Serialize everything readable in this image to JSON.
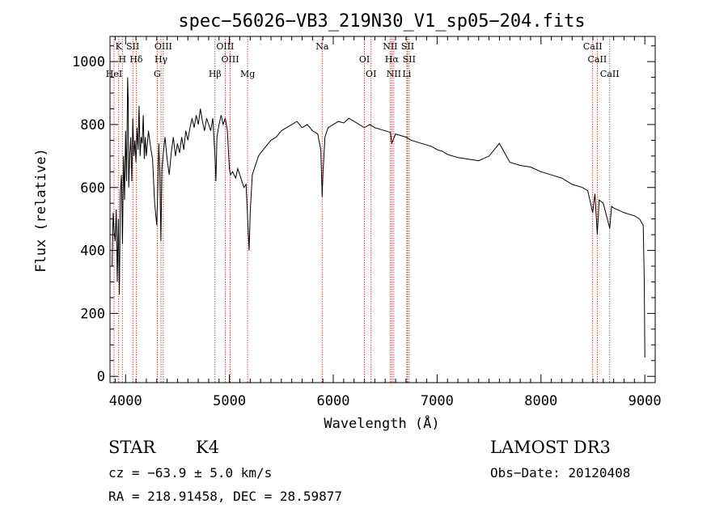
{
  "chart_data": {
    "type": "line",
    "title": "spec−56026−VB3_219N30_V1_sp05−204.fits",
    "xlabel": "Wavelength (Å)",
    "ylabel": "Flux (relative)",
    "xlim": [
      3850,
      9100
    ],
    "ylim": [
      -20,
      1080
    ],
    "xticks": [
      4000,
      5000,
      6000,
      7000,
      8000,
      9000
    ],
    "yticks": [
      0,
      200,
      400,
      600,
      800,
      1000
    ],
    "series": [
      {
        "name": "flux",
        "points": [
          [
            3870,
            350
          ],
          [
            3880,
            520
          ],
          [
            3890,
            460
          ],
          [
            3900,
            430
          ],
          [
            3910,
            530
          ],
          [
            3920,
            300
          ],
          [
            3930,
            500
          ],
          [
            3940,
            260
          ],
          [
            3950,
            580
          ],
          [
            3960,
            640
          ],
          [
            3970,
            420
          ],
          [
            3980,
            700
          ],
          [
            3990,
            560
          ],
          [
            4000,
            780
          ],
          [
            4010,
            620
          ],
          [
            4020,
            950
          ],
          [
            4025,
            880
          ],
          [
            4030,
            600
          ],
          [
            4040,
            700
          ],
          [
            4050,
            760
          ],
          [
            4060,
            620
          ],
          [
            4070,
            820
          ],
          [
            4080,
            700
          ],
          [
            4090,
            750
          ],
          [
            4100,
            680
          ],
          [
            4110,
            790
          ],
          [
            4120,
            720
          ],
          [
            4130,
            860
          ],
          [
            4140,
            700
          ],
          [
            4150,
            760
          ],
          [
            4160,
            740
          ],
          [
            4170,
            830
          ],
          [
            4180,
            690
          ],
          [
            4190,
            760
          ],
          [
            4200,
            700
          ],
          [
            4220,
            780
          ],
          [
            4240,
            730
          ],
          [
            4260,
            690
          ],
          [
            4280,
            550
          ],
          [
            4300,
            480
          ],
          [
            4310,
            600
          ],
          [
            4320,
            740
          ],
          [
            4330,
            640
          ],
          [
            4340,
            430
          ],
          [
            4350,
            660
          ],
          [
            4360,
            700
          ],
          [
            4380,
            760
          ],
          [
            4400,
            690
          ],
          [
            4420,
            640
          ],
          [
            4440,
            710
          ],
          [
            4460,
            760
          ],
          [
            4480,
            700
          ],
          [
            4500,
            740
          ],
          [
            4520,
            710
          ],
          [
            4540,
            760
          ],
          [
            4560,
            720
          ],
          [
            4580,
            780
          ],
          [
            4600,
            750
          ],
          [
            4620,
            790
          ],
          [
            4640,
            820
          ],
          [
            4660,
            790
          ],
          [
            4680,
            830
          ],
          [
            4700,
            800
          ],
          [
            4720,
            850
          ],
          [
            4740,
            810
          ],
          [
            4760,
            780
          ],
          [
            4780,
            820
          ],
          [
            4800,
            800
          ],
          [
            4820,
            780
          ],
          [
            4840,
            820
          ],
          [
            4860,
            700
          ],
          [
            4870,
            620
          ],
          [
            4880,
            760
          ],
          [
            4900,
            800
          ],
          [
            4920,
            830
          ],
          [
            4940,
            800
          ],
          [
            4960,
            820
          ],
          [
            4980,
            780
          ],
          [
            5000,
            660
          ],
          [
            5010,
            640
          ],
          [
            5030,
            650
          ],
          [
            5060,
            630
          ],
          [
            5080,
            660
          ],
          [
            5100,
            640
          ],
          [
            5120,
            620
          ],
          [
            5140,
            600
          ],
          [
            5160,
            610
          ],
          [
            5180,
            470
          ],
          [
            5190,
            400
          ],
          [
            5200,
            520
          ],
          [
            5220,
            640
          ],
          [
            5240,
            660
          ],
          [
            5260,
            680
          ],
          [
            5280,
            700
          ],
          [
            5300,
            710
          ],
          [
            5350,
            730
          ],
          [
            5400,
            750
          ],
          [
            5450,
            760
          ],
          [
            5500,
            780
          ],
          [
            5550,
            790
          ],
          [
            5600,
            800
          ],
          [
            5650,
            810
          ],
          [
            5700,
            790
          ],
          [
            5750,
            800
          ],
          [
            5800,
            780
          ],
          [
            5850,
            770
          ],
          [
            5880,
            720
          ],
          [
            5893,
            570
          ],
          [
            5900,
            640
          ],
          [
            5920,
            760
          ],
          [
            5950,
            790
          ],
          [
            6000,
            800
          ],
          [
            6050,
            810
          ],
          [
            6100,
            805
          ],
          [
            6150,
            820
          ],
          [
            6200,
            810
          ],
          [
            6250,
            800
          ],
          [
            6300,
            790
          ],
          [
            6350,
            800
          ],
          [
            6400,
            790
          ],
          [
            6450,
            785
          ],
          [
            6500,
            780
          ],
          [
            6550,
            775
          ],
          [
            6563,
            740
          ],
          [
            6600,
            770
          ],
          [
            6650,
            765
          ],
          [
            6700,
            760
          ],
          [
            6750,
            750
          ],
          [
            6800,
            745
          ],
          [
            6850,
            740
          ],
          [
            6900,
            735
          ],
          [
            6950,
            730
          ],
          [
            7000,
            720
          ],
          [
            7050,
            715
          ],
          [
            7100,
            705
          ],
          [
            7200,
            695
          ],
          [
            7300,
            690
          ],
          [
            7400,
            685
          ],
          [
            7500,
            700
          ],
          [
            7550,
            720
          ],
          [
            7600,
            740
          ],
          [
            7650,
            710
          ],
          [
            7700,
            680
          ],
          [
            7800,
            670
          ],
          [
            7900,
            665
          ],
          [
            8000,
            650
          ],
          [
            8100,
            640
          ],
          [
            8200,
            630
          ],
          [
            8300,
            610
          ],
          [
            8400,
            600
          ],
          [
            8450,
            590
          ],
          [
            8498,
            520
          ],
          [
            8520,
            580
          ],
          [
            8542,
            450
          ],
          [
            8560,
            560
          ],
          [
            8600,
            550
          ],
          [
            8662,
            470
          ],
          [
            8680,
            540
          ],
          [
            8700,
            535
          ],
          [
            8800,
            520
          ],
          [
            8900,
            510
          ],
          [
            8950,
            500
          ],
          [
            8985,
            480
          ],
          [
            8995,
            300
          ],
          [
            9000,
            60
          ]
        ]
      }
    ],
    "lines": [
      {
        "label": "K",
        "wl": 3934
      },
      {
        "label": "H",
        "wl": 3969
      },
      {
        "label": "HeI",
        "wl": 3889
      },
      {
        "label": "SII",
        "wl": 4070
      },
      {
        "label": "Hδ",
        "wl": 4102
      },
      {
        "label": "G",
        "wl": 4305
      },
      {
        "label": "OIII",
        "wl": 4363
      },
      {
        "label": "Hγ",
        "wl": 4341
      },
      {
        "label": "Hβ",
        "wl": 4861
      },
      {
        "label": "OIII",
        "wl": 4959
      },
      {
        "label": "OIII",
        "wl": 5007
      },
      {
        "label": "Mg",
        "wl": 5175
      },
      {
        "label": "Na",
        "wl": 5893
      },
      {
        "label": "OI",
        "wl": 6300
      },
      {
        "label": "OI",
        "wl": 6364
      },
      {
        "label": "NII",
        "wl": 6548
      },
      {
        "label": "Hα",
        "wl": 6563
      },
      {
        "label": "NII",
        "wl": 6583
      },
      {
        "label": "SII",
        "wl": 6716
      },
      {
        "label": "SII",
        "wl": 6731
      },
      {
        "label": "Li",
        "wl": 6708
      },
      {
        "label": "CaII",
        "wl": 8498
      },
      {
        "label": "CaII",
        "wl": 8542
      },
      {
        "label": "CaII",
        "wl": 8662
      }
    ],
    "line_color": "#b22222",
    "spectrum_color": "#000000"
  },
  "footer": {
    "class_label": "STAR",
    "subclass_label": "K4",
    "cz_text": "cz = −63.9 ± 5.0 km/s",
    "radec_text": "RA = 218.91458, DEC =  28.59877",
    "survey_label": "LAMOST DR3",
    "obsdate_text": "Obs−Date: 20120408"
  }
}
